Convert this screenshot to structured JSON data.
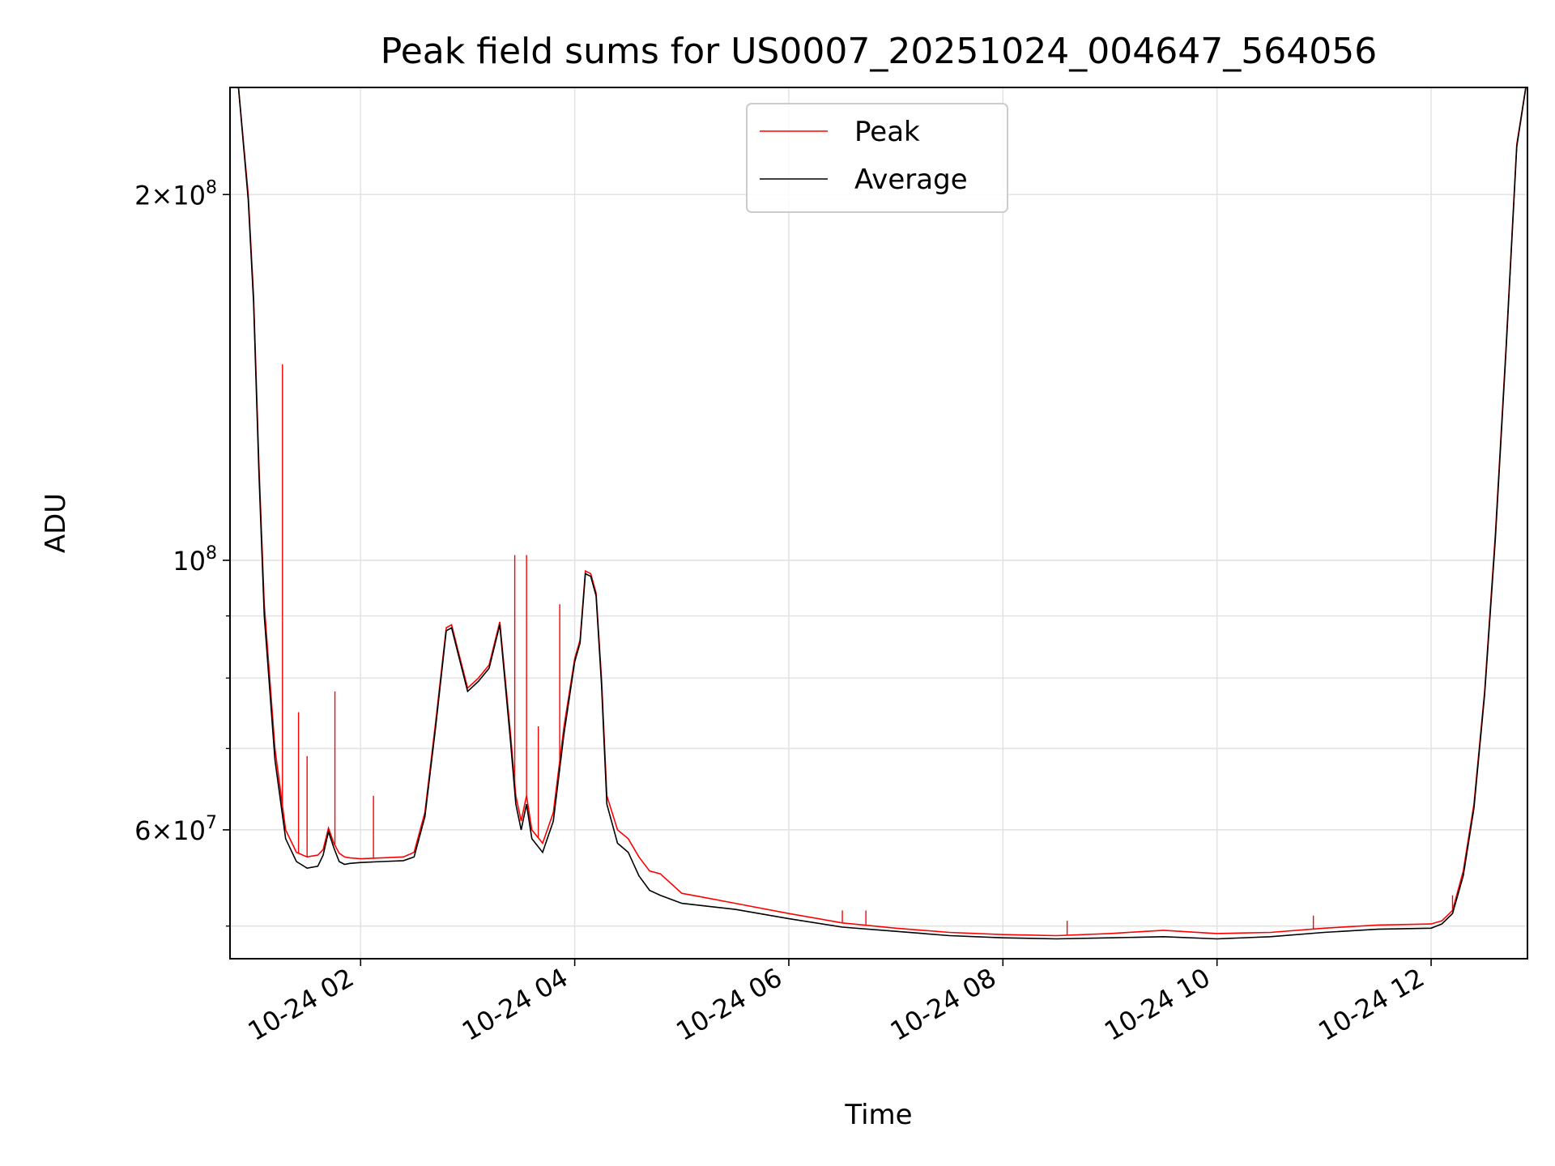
{
  "chart_data": {
    "type": "line",
    "title": "Peak field sums for US0007_20251024_004647_564056",
    "xlabel": "Time",
    "ylabel": "ADU",
    "y_scale": "log",
    "ylim": [
      47000000,
      245000000
    ],
    "x_hours_range": [
      0.78,
      12.9
    ],
    "grid": true,
    "legend_position": "top-center",
    "x_ticks": [
      {
        "hour": 2,
        "label": "10-24 02"
      },
      {
        "hour": 4,
        "label": "10-24 04"
      },
      {
        "hour": 6,
        "label": "10-24 06"
      },
      {
        "hour": 8,
        "label": "10-24 08"
      },
      {
        "hour": 10,
        "label": "10-24 10"
      },
      {
        "hour": 12,
        "label": "10-24 12"
      }
    ],
    "y_ticks": [
      {
        "value": 200000000,
        "mant": "2",
        "exp": "8"
      },
      {
        "value": 100000000,
        "mant": "",
        "exp": "8"
      },
      {
        "value": 60000000,
        "mant": "6",
        "exp": "7"
      }
    ],
    "y_minor_ticks": [
      50000000,
      70000000,
      80000000,
      90000000
    ],
    "series": [
      {
        "name": "Peak",
        "color": "#ff0000",
        "x": [
          0.85,
          0.95,
          1.0,
          1.05,
          1.1,
          1.2,
          1.3,
          1.4,
          1.5,
          1.6,
          1.65,
          1.7,
          1.75,
          1.8,
          1.85,
          1.9,
          2.0,
          2.2,
          2.4,
          2.5,
          2.6,
          2.7,
          2.8,
          2.85,
          2.9,
          3.0,
          3.1,
          3.2,
          3.3,
          3.4,
          3.45,
          3.5,
          3.55,
          3.6,
          3.7,
          3.8,
          3.9,
          4.0,
          4.05,
          4.1,
          4.15,
          4.2,
          4.25,
          4.3,
          4.4,
          4.5,
          4.6,
          4.7,
          4.8,
          5.0,
          5.5,
          6.0,
          6.5,
          7.0,
          7.5,
          8.0,
          8.5,
          9.0,
          9.5,
          10.0,
          10.5,
          11.0,
          11.5,
          12.0,
          12.1,
          12.2,
          12.3,
          12.4,
          12.5,
          12.6,
          12.7,
          12.8,
          12.9
        ],
        "y": [
          250000000,
          200000000,
          165000000,
          120000000,
          92000000,
          70000000,
          60000000,
          57500000,
          57000000,
          57200000,
          57800000,
          60200000,
          58500000,
          57400000,
          57000000,
          56900000,
          56800000,
          56900000,
          57000000,
          57500000,
          62000000,
          73500000,
          88000000,
          88500000,
          85000000,
          78500000,
          80000000,
          82000000,
          89000000,
          72000000,
          64000000,
          61000000,
          64000000,
          60000000,
          58500000,
          62000000,
          73000000,
          83000000,
          86000000,
          98000000,
          97500000,
          94000000,
          80000000,
          64000000,
          60000000,
          59000000,
          57000000,
          55500000,
          55200000,
          53200000,
          52200000,
          51200000,
          50300000,
          49800000,
          49400000,
          49200000,
          49100000,
          49300000,
          49600000,
          49300000,
          49400000,
          49800000,
          50100000,
          50200000,
          50500000,
          51500000,
          55500000,
          63000000,
          78000000,
          105000000,
          150000000,
          220000000,
          250000000
        ],
        "spikes": [
          {
            "x": 1.27,
            "y": 145000000
          },
          {
            "x": 1.42,
            "y": 75000000
          },
          {
            "x": 1.5,
            "y": 69000000
          },
          {
            "x": 1.76,
            "y": 78000000
          },
          {
            "x": 2.12,
            "y": 64000000
          },
          {
            "x": 3.44,
            "y": 101000000
          },
          {
            "x": 3.55,
            "y": 101000000
          },
          {
            "x": 3.66,
            "y": 73000000
          },
          {
            "x": 3.86,
            "y": 92000000
          },
          {
            "x": 6.5,
            "y": 51500000
          },
          {
            "x": 6.72,
            "y": 51500000
          },
          {
            "x": 8.6,
            "y": 50500000
          },
          {
            "x": 10.9,
            "y": 51000000
          },
          {
            "x": 12.2,
            "y": 53000000
          }
        ]
      },
      {
        "name": "Average",
        "color": "#000000",
        "x": [
          0.85,
          0.95,
          1.0,
          1.05,
          1.1,
          1.2,
          1.3,
          1.4,
          1.5,
          1.6,
          1.65,
          1.7,
          1.75,
          1.8,
          1.85,
          1.9,
          2.0,
          2.2,
          2.4,
          2.5,
          2.6,
          2.7,
          2.8,
          2.85,
          2.9,
          3.0,
          3.1,
          3.2,
          3.3,
          3.4,
          3.45,
          3.5,
          3.55,
          3.6,
          3.7,
          3.8,
          3.9,
          4.0,
          4.05,
          4.1,
          4.15,
          4.2,
          4.25,
          4.3,
          4.4,
          4.5,
          4.6,
          4.7,
          4.8,
          5.0,
          5.5,
          6.0,
          6.5,
          7.0,
          7.5,
          8.0,
          8.5,
          9.0,
          9.5,
          10.0,
          10.5,
          11.0,
          11.5,
          12.0,
          12.1,
          12.2,
          12.3,
          12.4,
          12.5,
          12.6,
          12.7,
          12.8,
          12.9
        ],
        "y": [
          250000000,
          198000000,
          163000000,
          118000000,
          90000000,
          68500000,
          59000000,
          56500000,
          55800000,
          56000000,
          57200000,
          59800000,
          58000000,
          56500000,
          56200000,
          56300000,
          56400000,
          56500000,
          56600000,
          57000000,
          61500000,
          72800000,
          87500000,
          88000000,
          84500000,
          78000000,
          79500000,
          81500000,
          88500000,
          71000000,
          63000000,
          60000000,
          63000000,
          59000000,
          57500000,
          61000000,
          72000000,
          82500000,
          85500000,
          97500000,
          97000000,
          93500000,
          79000000,
          63000000,
          58500000,
          57500000,
          55000000,
          53500000,
          53000000,
          52200000,
          51600000,
          50700000,
          49900000,
          49500000,
          49100000,
          48900000,
          48800000,
          48900000,
          49000000,
          48800000,
          49000000,
          49400000,
          49700000,
          49800000,
          50200000,
          51200000,
          55000000,
          62500000,
          77500000,
          104000000,
          149000000,
          219000000,
          250000000
        ]
      }
    ]
  }
}
